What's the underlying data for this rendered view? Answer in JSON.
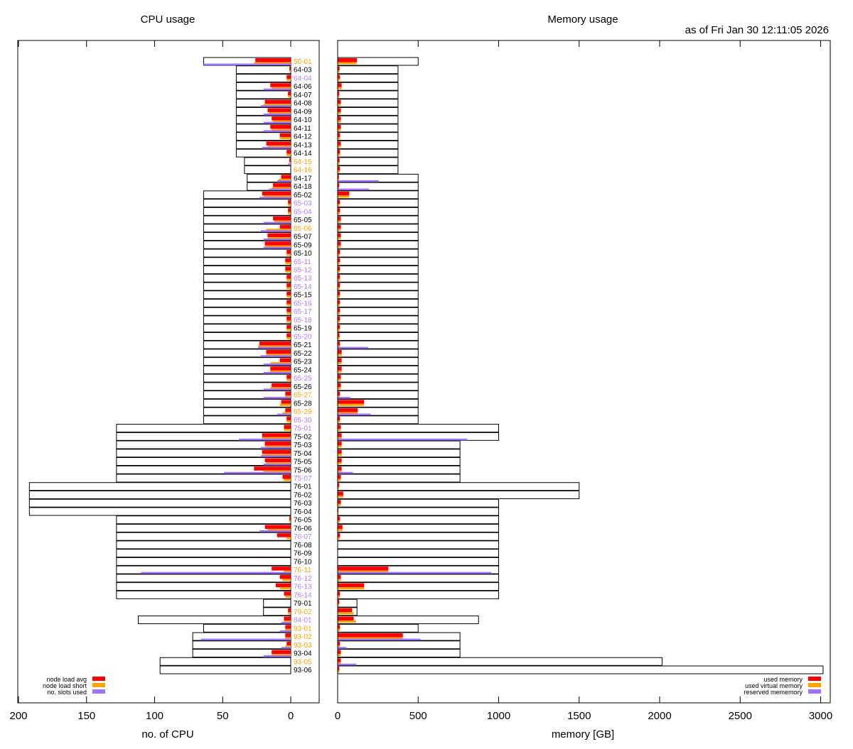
{
  "timestamp": "as of Fri Jan 30 12:11:05 2026",
  "colors": {
    "load_avg": "#ff0000",
    "load_short": "#ffa500",
    "slots": "#a070ff",
    "label_normal": "#000000",
    "label_orange": "#ffa500",
    "label_purple": "#b57cff"
  },
  "nodes": [
    {
      "name": "50-01",
      "status": "orange",
      "cpu_total": 64,
      "load_avg": 26,
      "load_short": 27,
      "slots": 64,
      "mem_total": 500,
      "used_mem": 120,
      "used_vmem": 118,
      "reserved_mem": 0
    },
    {
      "name": "64-03",
      "status": "normal",
      "cpu_total": 40,
      "load_avg": 1,
      "load_short": 1,
      "slots": 0,
      "mem_total": 375,
      "used_mem": 12,
      "used_vmem": 12,
      "reserved_mem": 0
    },
    {
      "name": "64-04",
      "status": "purple",
      "cpu_total": 40,
      "load_avg": 3,
      "load_short": 3,
      "slots": 0,
      "mem_total": 375,
      "used_mem": 15,
      "used_vmem": 15,
      "reserved_mem": 0
    },
    {
      "name": "64-06",
      "status": "normal",
      "cpu_total": 40,
      "load_avg": 15,
      "load_short": 14,
      "slots": 20,
      "mem_total": 375,
      "used_mem": 25,
      "used_vmem": 25,
      "reserved_mem": 0
    },
    {
      "name": "64-07",
      "status": "normal",
      "cpu_total": 40,
      "load_avg": 2,
      "load_short": 2,
      "slots": 0,
      "mem_total": 375,
      "used_mem": 10,
      "used_vmem": 10,
      "reserved_mem": 0
    },
    {
      "name": "64-08",
      "status": "normal",
      "cpu_total": 40,
      "load_avg": 19,
      "load_short": 20,
      "slots": 22,
      "mem_total": 375,
      "used_mem": 20,
      "used_vmem": 20,
      "reserved_mem": 0
    },
    {
      "name": "64-09",
      "status": "normal",
      "cpu_total": 40,
      "load_avg": 17,
      "load_short": 16,
      "slots": 20,
      "mem_total": 375,
      "used_mem": 20,
      "used_vmem": 20,
      "reserved_mem": 0
    },
    {
      "name": "64-10",
      "status": "normal",
      "cpu_total": 40,
      "load_avg": 14,
      "load_short": 13,
      "slots": 20,
      "mem_total": 375,
      "used_mem": 20,
      "used_vmem": 20,
      "reserved_mem": 0
    },
    {
      "name": "64-11",
      "status": "normal",
      "cpu_total": 40,
      "load_avg": 15,
      "load_short": 14,
      "slots": 20,
      "mem_total": 375,
      "used_mem": 20,
      "used_vmem": 20,
      "reserved_mem": 0
    },
    {
      "name": "64-12",
      "status": "normal",
      "cpu_total": 40,
      "load_avg": 8,
      "load_short": 8,
      "slots": 0,
      "mem_total": 375,
      "used_mem": 15,
      "used_vmem": 15,
      "reserved_mem": 0
    },
    {
      "name": "64-13",
      "status": "normal",
      "cpu_total": 40,
      "load_avg": 18,
      "load_short": 17,
      "slots": 21,
      "mem_total": 375,
      "used_mem": 20,
      "used_vmem": 20,
      "reserved_mem": 0
    },
    {
      "name": "64-14",
      "status": "normal",
      "cpu_total": 40,
      "load_avg": 3,
      "load_short": 3,
      "slots": 0,
      "mem_total": 375,
      "used_mem": 15,
      "used_vmem": 15,
      "reserved_mem": 0
    },
    {
      "name": "64-15",
      "status": "orange",
      "cpu_total": 34,
      "load_avg": 1,
      "load_short": 1,
      "slots": 2,
      "mem_total": 375,
      "used_mem": 12,
      "used_vmem": 12,
      "reserved_mem": 0
    },
    {
      "name": "64-16",
      "status": "orange",
      "cpu_total": 34,
      "load_avg": 0,
      "load_short": 0,
      "slots": 0,
      "mem_total": 375,
      "used_mem": 15,
      "used_vmem": 15,
      "reserved_mem": 0
    },
    {
      "name": "64-17",
      "status": "normal",
      "cpu_total": 32,
      "load_avg": 7,
      "load_short": 9,
      "slots": 10,
      "mem_total": 500,
      "used_mem": 8,
      "used_vmem": 8,
      "reserved_mem": 255
    },
    {
      "name": "64-18",
      "status": "normal",
      "cpu_total": 32,
      "load_avg": 13,
      "load_short": 14,
      "slots": 16,
      "mem_total": 500,
      "used_mem": 10,
      "used_vmem": 10,
      "reserved_mem": 195
    },
    {
      "name": "65-02",
      "status": "normal",
      "cpu_total": 64,
      "load_avg": 21,
      "load_short": 20,
      "slots": 23,
      "mem_total": 500,
      "used_mem": 72,
      "used_vmem": 72,
      "reserved_mem": 0
    },
    {
      "name": "65-03",
      "status": "purple",
      "cpu_total": 64,
      "load_avg": 2,
      "load_short": 2,
      "slots": 0,
      "mem_total": 500,
      "used_mem": 15,
      "used_vmem": 15,
      "reserved_mem": 0
    },
    {
      "name": "65-04",
      "status": "purple",
      "cpu_total": 64,
      "load_avg": 2,
      "load_short": 2,
      "slots": 0,
      "mem_total": 500,
      "used_mem": 15,
      "used_vmem": 15,
      "reserved_mem": 0
    },
    {
      "name": "65-05",
      "status": "normal",
      "cpu_total": 64,
      "load_avg": 13,
      "load_short": 12,
      "slots": 20,
      "mem_total": 500,
      "used_mem": 20,
      "used_vmem": 20,
      "reserved_mem": 0
    },
    {
      "name": "65-06",
      "status": "orange",
      "cpu_total": 64,
      "load_avg": 8,
      "load_short": 18,
      "slots": 22,
      "mem_total": 500,
      "used_mem": 20,
      "used_vmem": 20,
      "reserved_mem": 0
    },
    {
      "name": "65-07",
      "status": "normal",
      "cpu_total": 64,
      "load_avg": 17,
      "load_short": 17,
      "slots": 20,
      "mem_total": 500,
      "used_mem": 20,
      "used_vmem": 20,
      "reserved_mem": 0
    },
    {
      "name": "65-09",
      "status": "normal",
      "cpu_total": 64,
      "load_avg": 19,
      "load_short": 19,
      "slots": 20,
      "mem_total": 500,
      "used_mem": 20,
      "used_vmem": 20,
      "reserved_mem": 0
    },
    {
      "name": "65-10",
      "status": "normal",
      "cpu_total": 64,
      "load_avg": 3,
      "load_short": 3,
      "slots": 0,
      "mem_total": 500,
      "used_mem": 15,
      "used_vmem": 15,
      "reserved_mem": 0
    },
    {
      "name": "65-11",
      "status": "purple",
      "cpu_total": 64,
      "load_avg": 4,
      "load_short": 4,
      "slots": 0,
      "mem_total": 500,
      "used_mem": 15,
      "used_vmem": 15,
      "reserved_mem": 0
    },
    {
      "name": "65-12",
      "status": "purple",
      "cpu_total": 64,
      "load_avg": 4,
      "load_short": 4,
      "slots": 0,
      "mem_total": 500,
      "used_mem": 15,
      "used_vmem": 15,
      "reserved_mem": 0
    },
    {
      "name": "65-13",
      "status": "purple",
      "cpu_total": 64,
      "load_avg": 3,
      "load_short": 3,
      "slots": 0,
      "mem_total": 500,
      "used_mem": 15,
      "used_vmem": 15,
      "reserved_mem": 0
    },
    {
      "name": "65-14",
      "status": "purple",
      "cpu_total": 64,
      "load_avg": 3,
      "load_short": 3,
      "slots": 0,
      "mem_total": 500,
      "used_mem": 15,
      "used_vmem": 15,
      "reserved_mem": 0
    },
    {
      "name": "65-15",
      "status": "normal",
      "cpu_total": 64,
      "load_avg": 3,
      "load_short": 3,
      "slots": 0,
      "mem_total": 500,
      "used_mem": 15,
      "used_vmem": 15,
      "reserved_mem": 0
    },
    {
      "name": "65-16",
      "status": "purple",
      "cpu_total": 64,
      "load_avg": 3,
      "load_short": 3,
      "slots": 0,
      "mem_total": 500,
      "used_mem": 15,
      "used_vmem": 15,
      "reserved_mem": 0
    },
    {
      "name": "65-17",
      "status": "purple",
      "cpu_total": 64,
      "load_avg": 3,
      "load_short": 3,
      "slots": 0,
      "mem_total": 500,
      "used_mem": 15,
      "used_vmem": 15,
      "reserved_mem": 0
    },
    {
      "name": "65-18",
      "status": "purple",
      "cpu_total": 64,
      "load_avg": 3,
      "load_short": 3,
      "slots": 0,
      "mem_total": 500,
      "used_mem": 15,
      "used_vmem": 15,
      "reserved_mem": 0
    },
    {
      "name": "65-19",
      "status": "normal",
      "cpu_total": 64,
      "load_avg": 3,
      "load_short": 3,
      "slots": 0,
      "mem_total": 500,
      "used_mem": 15,
      "used_vmem": 15,
      "reserved_mem": 0
    },
    {
      "name": "65-20",
      "status": "purple",
      "cpu_total": 64,
      "load_avg": 3,
      "load_short": 3,
      "slots": 0,
      "mem_total": 500,
      "used_mem": 12,
      "used_vmem": 12,
      "reserved_mem": 0
    },
    {
      "name": "65-21",
      "status": "normal",
      "cpu_total": 64,
      "load_avg": 23,
      "load_short": 24,
      "slots": 24,
      "mem_total": 500,
      "used_mem": 15,
      "used_vmem": 15,
      "reserved_mem": 190
    },
    {
      "name": "65-22",
      "status": "normal",
      "cpu_total": 64,
      "load_avg": 18,
      "load_short": 18,
      "slots": 22,
      "mem_total": 500,
      "used_mem": 25,
      "used_vmem": 25,
      "reserved_mem": 0
    },
    {
      "name": "65-23",
      "status": "normal",
      "cpu_total": 64,
      "load_avg": 8,
      "load_short": 15,
      "slots": 20,
      "mem_total": 500,
      "used_mem": 25,
      "used_vmem": 25,
      "reserved_mem": 0
    },
    {
      "name": "65-24",
      "status": "normal",
      "cpu_total": 64,
      "load_avg": 15,
      "load_short": 15,
      "slots": 20,
      "mem_total": 500,
      "used_mem": 25,
      "used_vmem": 25,
      "reserved_mem": 0
    },
    {
      "name": "65-25",
      "status": "purple",
      "cpu_total": 64,
      "load_avg": 3,
      "load_short": 3,
      "slots": 0,
      "mem_total": 500,
      "used_mem": 20,
      "used_vmem": 20,
      "reserved_mem": 0
    },
    {
      "name": "65-26",
      "status": "normal",
      "cpu_total": 64,
      "load_avg": 14,
      "load_short": 15,
      "slots": 20,
      "mem_total": 500,
      "used_mem": 20,
      "used_vmem": 20,
      "reserved_mem": 0
    },
    {
      "name": "65-27",
      "status": "orange",
      "cpu_total": 64,
      "load_avg": 4,
      "load_short": 4,
      "slots": 20,
      "mem_total": 500,
      "used_mem": 15,
      "used_vmem": 15,
      "reserved_mem": 80
    },
    {
      "name": "65-28",
      "status": "normal",
      "cpu_total": 64,
      "load_avg": 7,
      "load_short": 8,
      "slots": 0,
      "mem_total": 500,
      "used_mem": 165,
      "used_vmem": 163,
      "reserved_mem": 0
    },
    {
      "name": "65-29",
      "status": "orange",
      "cpu_total": 64,
      "load_avg": 4,
      "load_short": 6,
      "slots": 10,
      "mem_total": 500,
      "used_mem": 125,
      "used_vmem": 125,
      "reserved_mem": 205
    },
    {
      "name": "65-30",
      "status": "purple",
      "cpu_total": 64,
      "load_avg": 3,
      "load_short": 3,
      "slots": 0,
      "mem_total": 500,
      "used_mem": 15,
      "used_vmem": 15,
      "reserved_mem": 0
    },
    {
      "name": "75-01",
      "status": "purple",
      "cpu_total": 128,
      "load_avg": 5,
      "load_short": 5,
      "slots": 0,
      "mem_total": 1000,
      "used_mem": 20,
      "used_vmem": 20,
      "reserved_mem": 0
    },
    {
      "name": "75-02",
      "status": "normal",
      "cpu_total": 128,
      "load_avg": 21,
      "load_short": 21,
      "slots": 38,
      "mem_total": 1000,
      "used_mem": 25,
      "used_vmem": 25,
      "reserved_mem": 805
    },
    {
      "name": "75-03",
      "status": "normal",
      "cpu_total": 128,
      "load_avg": 19,
      "load_short": 19,
      "slots": 22,
      "mem_total": 760,
      "used_mem": 25,
      "used_vmem": 25,
      "reserved_mem": 0
    },
    {
      "name": "75-04",
      "status": "normal",
      "cpu_total": 128,
      "load_avg": 21,
      "load_short": 21,
      "slots": 22,
      "mem_total": 760,
      "used_mem": 25,
      "used_vmem": 25,
      "reserved_mem": 0
    },
    {
      "name": "75-05",
      "status": "normal",
      "cpu_total": 128,
      "load_avg": 19,
      "load_short": 18,
      "slots": 20,
      "mem_total": 760,
      "used_mem": 25,
      "used_vmem": 25,
      "reserved_mem": 0
    },
    {
      "name": "75-06",
      "status": "normal",
      "cpu_total": 128,
      "load_avg": 27,
      "load_short": 20,
      "slots": 49,
      "mem_total": 760,
      "used_mem": 25,
      "used_vmem": 25,
      "reserved_mem": 95
    },
    {
      "name": "75-07",
      "status": "purple",
      "cpu_total": 128,
      "load_avg": 6,
      "load_short": 5,
      "slots": 0,
      "mem_total": 760,
      "used_mem": 20,
      "used_vmem": 20,
      "reserved_mem": 0
    },
    {
      "name": "76-01",
      "status": "normal",
      "cpu_total": 192,
      "load_avg": 0,
      "load_short": 0,
      "slots": 0,
      "mem_total": 1500,
      "used_mem": 10,
      "used_vmem": 10,
      "reserved_mem": 0
    },
    {
      "name": "76-02",
      "status": "normal",
      "cpu_total": 192,
      "load_avg": 0,
      "load_short": 0,
      "slots": 0,
      "mem_total": 1500,
      "used_mem": 35,
      "used_vmem": 35,
      "reserved_mem": 0
    },
    {
      "name": "76-03",
      "status": "normal",
      "cpu_total": 192,
      "load_avg": 0,
      "load_short": 0,
      "slots": 0,
      "mem_total": 1000,
      "used_mem": 20,
      "used_vmem": 20,
      "reserved_mem": 0
    },
    {
      "name": "76-04",
      "status": "normal",
      "cpu_total": 192,
      "load_avg": 0,
      "load_short": 0,
      "slots": 0,
      "mem_total": 1000,
      "used_mem": 5,
      "used_vmem": 5,
      "reserved_mem": 0
    },
    {
      "name": "76-05",
      "status": "normal",
      "cpu_total": 128,
      "load_avg": 1,
      "load_short": 1,
      "slots": 0,
      "mem_total": 1000,
      "used_mem": 15,
      "used_vmem": 15,
      "reserved_mem": 0
    },
    {
      "name": "76-06",
      "status": "normal",
      "cpu_total": 128,
      "load_avg": 19,
      "load_short": 17,
      "slots": 23,
      "mem_total": 1000,
      "used_mem": 30,
      "used_vmem": 30,
      "reserved_mem": 0
    },
    {
      "name": "76-07",
      "status": "purple",
      "cpu_total": 128,
      "load_avg": 10,
      "load_short": 3,
      "slots": 0,
      "mem_total": 1000,
      "used_mem": 15,
      "used_vmem": 15,
      "reserved_mem": 0
    },
    {
      "name": "76-08",
      "status": "normal",
      "cpu_total": 128,
      "load_avg": 0,
      "load_short": 0,
      "slots": 0,
      "mem_total": 1000,
      "used_mem": 0,
      "used_vmem": 0,
      "reserved_mem": 0
    },
    {
      "name": "76-09",
      "status": "normal",
      "cpu_total": 128,
      "load_avg": 0,
      "load_short": 0,
      "slots": 0,
      "mem_total": 1000,
      "used_mem": 0,
      "used_vmem": 0,
      "reserved_mem": 0
    },
    {
      "name": "76-10",
      "status": "normal",
      "cpu_total": 128,
      "load_avg": 0,
      "load_short": 0,
      "slots": 0,
      "mem_total": 1000,
      "used_mem": 0,
      "used_vmem": 0,
      "reserved_mem": 0
    },
    {
      "name": "76-11",
      "status": "orange",
      "cpu_total": 128,
      "load_avg": 14,
      "load_short": 5,
      "slots": 110,
      "mem_total": 1000,
      "used_mem": 315,
      "used_vmem": 315,
      "reserved_mem": 955
    },
    {
      "name": "76-12",
      "status": "purple",
      "cpu_total": 128,
      "load_avg": 8,
      "load_short": 6,
      "slots": 0,
      "mem_total": 1000,
      "used_mem": 20,
      "used_vmem": 20,
      "reserved_mem": 0
    },
    {
      "name": "76-13",
      "status": "purple",
      "cpu_total": 128,
      "load_avg": 11,
      "load_short": 8,
      "slots": 0,
      "mem_total": 1000,
      "used_mem": 165,
      "used_vmem": 165,
      "reserved_mem": 0
    },
    {
      "name": "76-14",
      "status": "purple",
      "cpu_total": 128,
      "load_avg": 5,
      "load_short": 4,
      "slots": 0,
      "mem_total": 1000,
      "used_mem": 15,
      "used_vmem": 15,
      "reserved_mem": 0
    },
    {
      "name": "79-01",
      "status": "normal",
      "cpu_total": 20,
      "load_avg": 0,
      "load_short": 0,
      "slots": 0,
      "mem_total": 120,
      "used_mem": 10,
      "used_vmem": 10,
      "reserved_mem": 0
    },
    {
      "name": "79-02",
      "status": "orange",
      "cpu_total": 20,
      "load_avg": 2,
      "load_short": 2,
      "slots": 0,
      "mem_total": 120,
      "used_mem": 90,
      "used_vmem": 100,
      "reserved_mem": 0
    },
    {
      "name": "84-01",
      "status": "purple",
      "cpu_total": 112,
      "load_avg": 5,
      "load_short": 5,
      "slots": 7,
      "mem_total": 875,
      "used_mem": 100,
      "used_vmem": 115,
      "reserved_mem": 0
    },
    {
      "name": "93-01",
      "status": "orange",
      "cpu_total": 64,
      "load_avg": 4,
      "load_short": 4,
      "slots": 8,
      "mem_total": 500,
      "used_mem": 15,
      "used_vmem": 15,
      "reserved_mem": 0
    },
    {
      "name": "93-02",
      "status": "orange",
      "cpu_total": 72,
      "load_avg": 4,
      "load_short": 4,
      "slots": 66,
      "mem_total": 760,
      "used_mem": 405,
      "used_vmem": 405,
      "reserved_mem": 515
    },
    {
      "name": "93-03",
      "status": "orange",
      "cpu_total": 72,
      "load_avg": 3,
      "load_short": 4,
      "slots": 7,
      "mem_total": 760,
      "used_mem": 15,
      "used_vmem": 15,
      "reserved_mem": 55
    },
    {
      "name": "93-04",
      "status": "normal",
      "cpu_total": 72,
      "load_avg": 14,
      "load_short": 14,
      "slots": 20,
      "mem_total": 760,
      "used_mem": 20,
      "used_vmem": 20,
      "reserved_mem": 0
    },
    {
      "name": "93-05",
      "status": "orange",
      "cpu_total": 96,
      "load_avg": 0,
      "load_short": 0,
      "slots": 0,
      "mem_total": 2015,
      "used_mem": 20,
      "used_vmem": 20,
      "reserved_mem": 115
    },
    {
      "name": "93-06",
      "status": "normal",
      "cpu_total": 96,
      "load_avg": 0,
      "load_short": 0,
      "slots": 0,
      "mem_total": 3015,
      "used_mem": 10,
      "used_vmem": 10,
      "reserved_mem": 0
    }
  ],
  "chart_data": [
    {
      "type": "bar",
      "orientation": "horizontal-reversed",
      "title": "CPU usage",
      "xlabel": "no. of CPU",
      "xlim": [
        200,
        -18
      ],
      "xticks": [
        200,
        150,
        100,
        50,
        0
      ],
      "grid": false,
      "legend_position": "bottom-left",
      "categories_source": "nodes[].name",
      "series": [
        {
          "name": "node load avg",
          "key": "load_avg",
          "color": "#ff0000"
        },
        {
          "name": "node load short",
          "key": "load_short",
          "color": "#ffa500"
        },
        {
          "name": "no. slots used",
          "key": "slots",
          "color": "#a070ff"
        }
      ],
      "capacity_key": "cpu_total"
    },
    {
      "type": "bar",
      "orientation": "horizontal",
      "title": "Memory usage",
      "xlabel": "memory [GB]",
      "xlim": [
        0,
        3050
      ],
      "xticks": [
        0,
        500,
        1000,
        1500,
        2000,
        2500,
        3000
      ],
      "grid": false,
      "legend_position": "bottom-right",
      "categories_source": "nodes[].name",
      "series": [
        {
          "name": "used memory",
          "key": "used_mem",
          "color": "#ff0000"
        },
        {
          "name": "used virtual memory",
          "key": "used_vmem",
          "color": "#ffa500"
        },
        {
          "name": "reserved mememory",
          "key": "reserved_mem",
          "color": "#a070ff"
        }
      ],
      "capacity_key": "mem_total"
    }
  ]
}
